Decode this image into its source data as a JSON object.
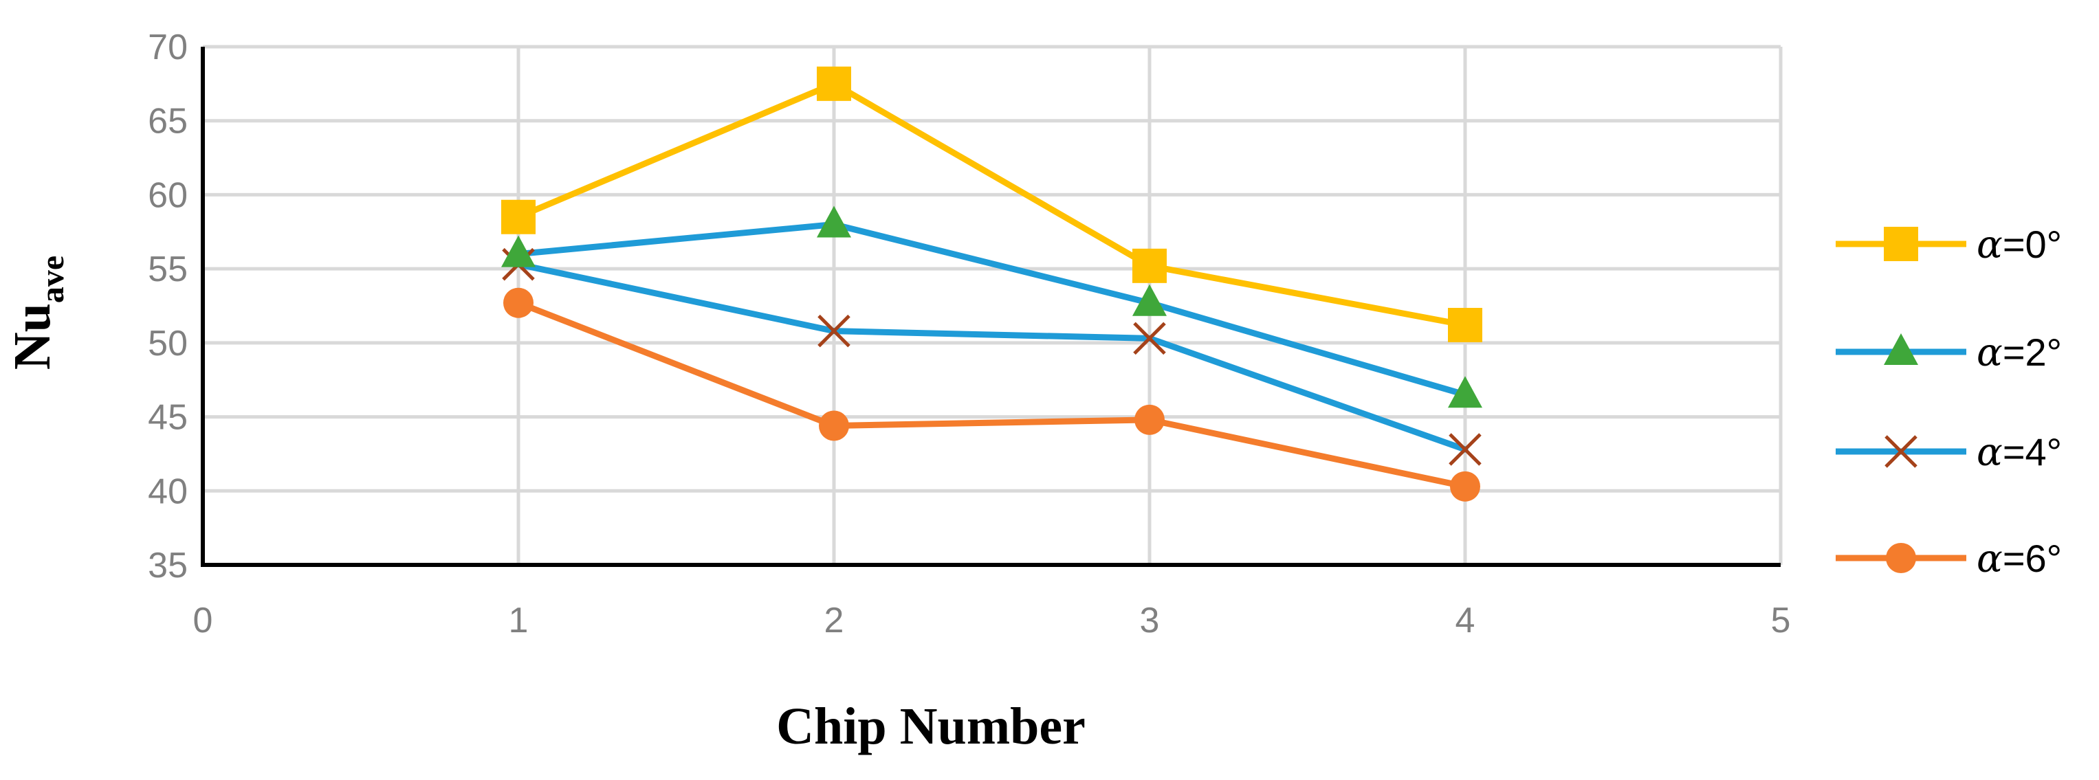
{
  "chart_data": {
    "type": "line",
    "xlabel": "Chip Number",
    "ylabel_main": "Nu",
    "ylabel_sub": "ave",
    "xlim": [
      0,
      5
    ],
    "ylim": [
      35,
      70
    ],
    "xticks": [
      0,
      1,
      2,
      3,
      4,
      5
    ],
    "yticks": [
      35,
      40,
      45,
      50,
      55,
      60,
      65,
      70
    ],
    "grid": true,
    "legend_position": "right",
    "series": [
      {
        "name": "α=0°",
        "legend_symbol": "α",
        "legend_rest": "=0°",
        "line_color": "#FFC000",
        "marker": "square",
        "marker_color": "#FFC000",
        "x": [
          1,
          2,
          3,
          4
        ],
        "y": [
          58.5,
          67.5,
          55.2,
          51.2
        ]
      },
      {
        "name": "α=2°",
        "legend_symbol": "α",
        "legend_rest": "=2°",
        "line_color": "#1F9BD7",
        "marker": "triangle",
        "marker_color": "#3FA73A",
        "x": [
          1,
          2,
          3,
          4
        ],
        "y": [
          56.0,
          58.0,
          52.7,
          46.5
        ]
      },
      {
        "name": "α=4°",
        "legend_symbol": "α",
        "legend_rest": "=4°",
        "line_color": "#1F9BD7",
        "marker": "x",
        "marker_color": "#A5421A",
        "x": [
          1,
          2,
          3,
          4
        ],
        "y": [
          55.3,
          50.8,
          50.3,
          42.8
        ]
      },
      {
        "name": "α=6°",
        "legend_symbol": "α",
        "legend_rest": "=6°",
        "line_color": "#F47C2C",
        "marker": "circle",
        "marker_color": "#F47C2C",
        "x": [
          1,
          2,
          3,
          4
        ],
        "y": [
          52.7,
          44.4,
          44.8,
          40.3
        ]
      }
    ]
  },
  "colors": {
    "grid": "#D9D9D9",
    "axis": "#000000",
    "tick_text": "#808080"
  }
}
